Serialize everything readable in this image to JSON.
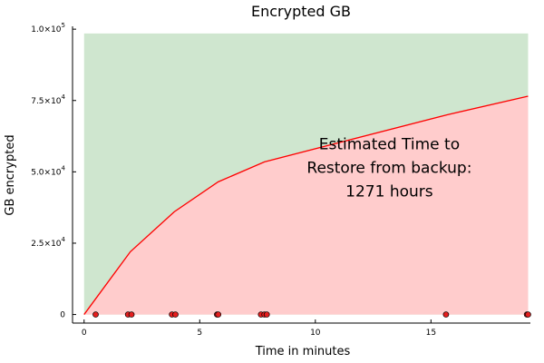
{
  "chart_data": {
    "type": "area",
    "title": "Encrypted GB",
    "xlabel": "Time in minutes",
    "ylabel": "GB encrypted",
    "xlim": [
      -0.5,
      19.3
    ],
    "ylim": [
      -3000,
      101000
    ],
    "x_ticks": [
      0,
      5,
      10,
      15
    ],
    "x_tick_labels": [
      "0",
      "5",
      "10",
      "15"
    ],
    "y_ticks": [
      0,
      25000,
      50000,
      75000,
      100000
    ],
    "y_tick_labels": [
      {
        "mantissa": "0",
        "exponent": ""
      },
      {
        "mantissa": "2.5×10",
        "exponent": "4"
      },
      {
        "mantissa": "5.0×10",
        "exponent": "4"
      },
      {
        "mantissa": "7.5×10",
        "exponent": "4"
      },
      {
        "mantissa": "1.0×10",
        "exponent": "5"
      }
    ],
    "upper_band": {
      "x": [
        0,
        19.2
      ],
      "y": [
        98500,
        98500
      ],
      "color": "#cfe6cf"
    },
    "line": {
      "x": [
        0,
        2,
        3.9,
        5.8,
        7.8,
        15.7,
        19.2
      ],
      "y": [
        0,
        22000,
        36000,
        46500,
        53500,
        70000,
        76500
      ],
      "color": "#ff0000",
      "fill_color": "#ffcccc"
    },
    "scatter": {
      "x": [
        0.5,
        1.9,
        2.05,
        3.8,
        3.95,
        5.75,
        5.8,
        7.65,
        7.8,
        7.9,
        15.65,
        19.15,
        19.2
      ],
      "y": [
        0,
        0,
        0,
        0,
        0,
        0,
        0,
        0,
        0,
        0,
        0,
        0,
        0
      ],
      "color": "#e51e1e"
    },
    "annotation": {
      "lines": [
        "Estimated Time to",
        "Restore from backup:",
        "1271 hours"
      ],
      "x": 13.2,
      "y": 51500
    },
    "grid": false,
    "legend": "none"
  }
}
